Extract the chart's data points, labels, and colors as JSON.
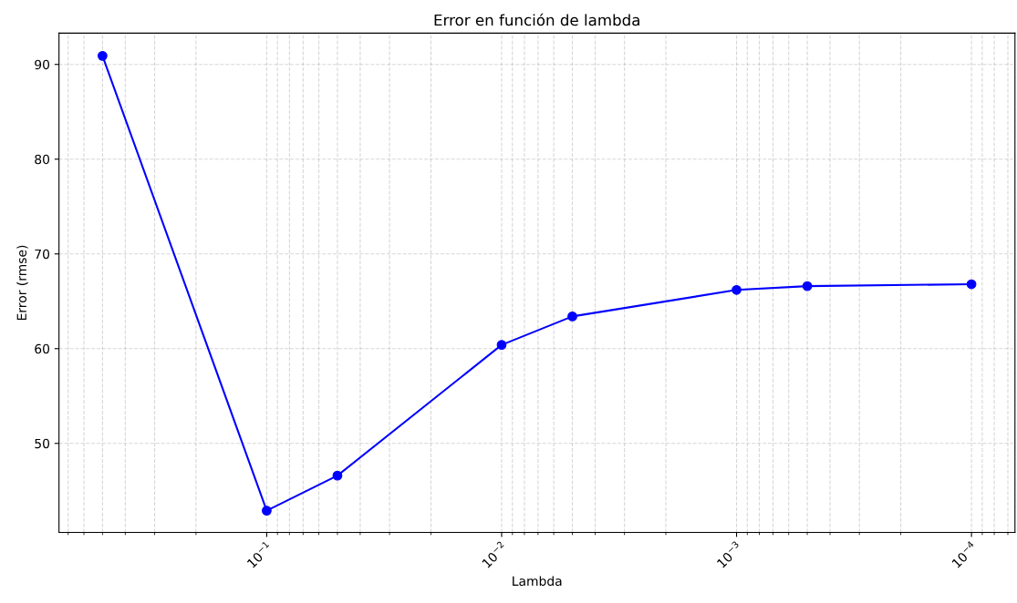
{
  "chart_data": {
    "type": "line",
    "title": "Error en función de lambda",
    "xlabel": "Lambda",
    "ylabel": "Error (rmse)",
    "x": [
      0.5,
      0.1,
      0.05,
      0.01,
      0.005,
      0.001,
      0.0005,
      0.0001
    ],
    "series": [
      {
        "color": "#0000ff",
        "values": [
          90.9,
          42.9,
          46.6,
          60.4,
          63.4,
          66.2,
          66.6,
          66.8
        ]
      }
    ],
    "log": "x",
    "xlim": [
      0.766,
      6.53e-05
    ],
    "xticks": [
      {
        "value": 0.1,
        "label": "10$^{−1}$"
      },
      {
        "value": 0.01,
        "label": "10$^{−2}$"
      },
      {
        "value": 0.001,
        "label": "10$^{−3}$"
      },
      {
        "value": 0.0001,
        "label": "10$^{−4}$"
      }
    ],
    "ylim": [
      40.6,
      93.3
    ],
    "yticks": [
      50,
      60,
      70,
      80,
      90
    ],
    "grid": true,
    "marker": "circle",
    "line_style": "solid"
  }
}
